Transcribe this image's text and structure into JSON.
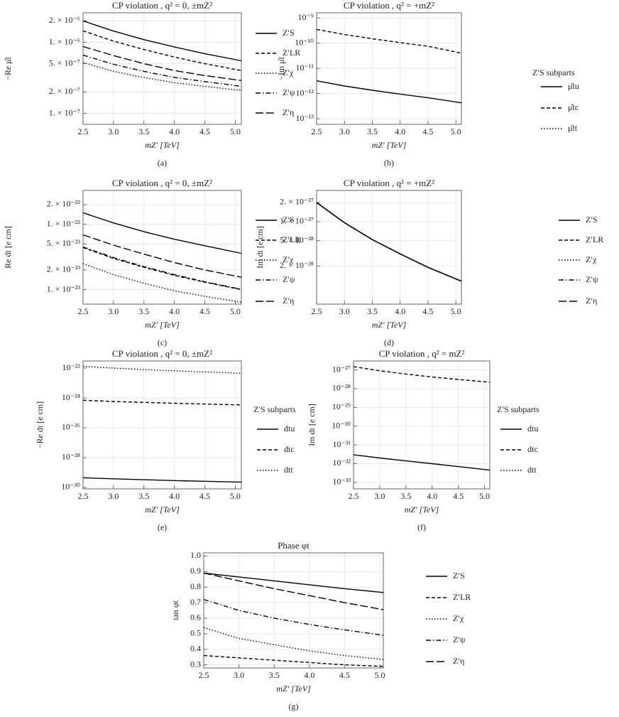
{
  "chart_data": [
    {
      "type": "line",
      "title": "CP violation ,  q² = 0, ±mZ²",
      "caption": "(a)",
      "x_label": "mZ′ [TeV]",
      "y_label": "−Re μ̂t",
      "x": [
        2.5,
        3,
        3.5,
        4,
        4.5,
        5.1
      ],
      "xlim": [
        2.5,
        5.1
      ],
      "xticks": [
        2.5,
        {
          "value": 3,
          "label": "3.0"
        },
        3.5,
        {
          "value": 4,
          "label": "4.0"
        },
        4.5,
        {
          "value": 5,
          "label": "5.0"
        }
      ],
      "ylim": [
        7e-08,
        2.6e-06
      ],
      "yscale": "log",
      "grid": true,
      "yticks": [
        {
          "value": 1e-07,
          "label": "1. × 10⁻⁷"
        },
        {
          "value": 2e-07,
          "label": "2. × 10⁻⁷"
        },
        {
          "value": 5e-07,
          "label": "5. × 10⁻⁷"
        },
        {
          "value": 1e-06,
          "label": "1. × 10⁻⁶"
        },
        {
          "value": 2e-06,
          "label": "2. × 10⁻⁶"
        }
      ],
      "series": [
        {
          "name": "Z′S",
          "color": "#000000",
          "dash": "solid",
          "values": [
            2e-06,
            1.44e-06,
            1.09e-06,
            8.6e-07,
            6.9e-07,
            5.5e-07
          ]
        },
        {
          "name": "Z′LR",
          "color": "#000000",
          "dash": "dashed",
          "values": [
            1.45e-06,
            1.04e-06,
            7.9e-07,
            6.2e-07,
            5e-07,
            4e-07
          ]
        },
        {
          "name": "Z′χ",
          "color": "#000000",
          "dash": "dotted",
          "values": [
            5.2e-07,
            3.9e-07,
            3.2e-07,
            2.7e-07,
            2.4e-07,
            2.1e-07
          ]
        },
        {
          "name": "Z′ψ",
          "color": "#000000",
          "dash": "dashdot",
          "values": [
            6.6e-07,
            4.9e-07,
            3.9e-07,
            3.2e-07,
            2.8e-07,
            2.4e-07
          ]
        },
        {
          "name": "Z′η",
          "color": "#000000",
          "dash": "longdash",
          "values": [
            8.7e-07,
            6.5e-07,
            5e-07,
            4e-07,
            3.4e-07,
            2.9e-07
          ]
        }
      ]
    },
    {
      "type": "line",
      "title": "CP violation ,  q² = +mZ²",
      "caption": "(b)",
      "x_label": "mZ′ [TeV]",
      "y_label": "−Im μ̂t",
      "legend_title": "Z′S subparts",
      "x": [
        2.5,
        3,
        3.5,
        4,
        4.5,
        5.1
      ],
      "xlim": [
        2.5,
        5.1
      ],
      "xticks": [
        2.5,
        {
          "value": 3,
          "label": "3.0"
        },
        3.5,
        {
          "value": 4,
          "label": "4.0"
        },
        4.5,
        {
          "value": 5,
          "label": "5.0"
        }
      ],
      "ylim": [
        6e-14,
        1.6e-09
      ],
      "yscale": "log",
      "grid": true,
      "yticks": [
        {
          "value": 1e-13,
          "label": "10⁻¹³"
        },
        {
          "value": 1e-12,
          "label": "10⁻¹²"
        },
        {
          "value": 1e-11,
          "label": "10⁻¹¹"
        },
        {
          "value": 1e-10,
          "label": "10⁻¹⁰"
        },
        {
          "value": 1e-09,
          "label": "10⁻⁹"
        }
      ],
      "series": [
        {
          "name": "μ̂tu",
          "color": "#000000",
          "dash": "solid",
          "values": [
            3.2e-12,
            2e-12,
            1.35e-12,
            9.5e-13,
            6.8e-13,
            4.3e-13
          ]
        },
        {
          "name": "μ̂tc",
          "color": "#000000",
          "dash": "dashed",
          "values": [
            3.5e-10,
            2.2e-10,
            1.5e-10,
            1.05e-10,
            7.5e-11,
            4e-11
          ]
        },
        {
          "name": "μ̂tt",
          "color": "#000000",
          "dash": "dotted",
          "values": [
            null,
            null,
            null,
            null,
            null,
            null
          ]
        }
      ]
    },
    {
      "type": "line",
      "title": "CP violation ,  q² = 0, ±mZ²",
      "caption": "(c)",
      "x_label": "mZ′ [TeV]",
      "y_label": "Re dt [e cm]",
      "x": [
        2.5,
        3,
        3.5,
        4,
        4.5,
        5.1
      ],
      "xlim": [
        2.5,
        5.1
      ],
      "xticks": [
        2.5,
        {
          "value": 3,
          "label": "3.0"
        },
        3.5,
        {
          "value": 4,
          "label": "4.0"
        },
        4.5,
        {
          "value": 5,
          "label": "5.0"
        }
      ],
      "ylim": [
        6e-24,
        3.3e-22
      ],
      "yscale": "log",
      "grid": true,
      "yticks": [
        {
          "value": 1e-23,
          "label": "1. × 10⁻²³"
        },
        {
          "value": 2e-23,
          "label": "2. × 10⁻²³"
        },
        {
          "value": 5e-23,
          "label": "5. × 10⁻²³"
        },
        {
          "value": 1e-22,
          "label": "1. × 10⁻²²"
        },
        {
          "value": 2e-22,
          "label": "2. × 10⁻²²"
        }
      ],
      "series": [
        {
          "name": "Z′S",
          "color": "#000000",
          "dash": "solid",
          "values": [
            1.5e-22,
            1.05e-22,
            7.7e-23,
            5.9e-23,
            4.7e-23,
            3.6e-23
          ]
        },
        {
          "name": "Z′LR",
          "color": "#000000",
          "dash": "dashed",
          "values": [
            4.4e-23,
            3e-23,
            2.2e-23,
            1.65e-23,
            1.3e-23,
            1e-23
          ]
        },
        {
          "name": "Z′χ",
          "color": "#000000",
          "dash": "dotted",
          "values": [
            2.5e-23,
            1.7e-23,
            1.25e-23,
            9.6e-24,
            7.9e-24,
            6.4e-24
          ]
        },
        {
          "name": "Z′ψ",
          "color": "#000000",
          "dash": "dashdot",
          "values": [
            4.5e-23,
            3.1e-23,
            2.25e-23,
            1.7e-23,
            1.32e-23,
            1.01e-23
          ]
        },
        {
          "name": "Z′η",
          "color": "#000000",
          "dash": "longdash",
          "values": [
            6.9e-23,
            4.8e-23,
            3.5e-23,
            2.6e-23,
            2e-23,
            1.55e-23
          ]
        }
      ]
    },
    {
      "type": "line",
      "title": "CP violation ,  q² = +mZ²",
      "caption": "(d)",
      "x_label": "mZ′ [TeV]",
      "y_label": "Im dt [e cm]",
      "x": [
        2.5,
        3,
        3.5,
        4,
        4.5,
        5.1
      ],
      "xlim": [
        2.5,
        5.1
      ],
      "xticks": [
        2.5,
        {
          "value": 3,
          "label": "3.0"
        },
        3.5,
        {
          "value": 4,
          "label": "4.0"
        },
        4.5,
        {
          "value": 5,
          "label": "5.0"
        }
      ],
      "ylim": [
        5e-29,
        3.1e-27
      ],
      "yscale": "log",
      "grid": true,
      "yticks": [
        {
          "value": 2e-28,
          "label": "2. × 10⁻²⁸"
        },
        {
          "value": 5e-28,
          "label": "5. × 10⁻²⁸"
        },
        {
          "value": 1e-27,
          "label": "1. × 10⁻²⁷"
        },
        {
          "value": 2e-27,
          "label": "2. × 10⁻²⁷"
        }
      ],
      "series": [
        {
          "name": "Z′S",
          "color": "#000000",
          "dash": "solid",
          "values": [
            2e-27,
            9.6e-28,
            5.2e-28,
            3.1e-28,
            1.9e-28,
            1.15e-28
          ]
        },
        {
          "name": "Z′LR",
          "color": "#000000",
          "dash": "dashed",
          "values": [
            2e-27,
            9.6e-28,
            5.2e-28,
            3.1e-28,
            1.9e-28,
            1.15e-28
          ]
        },
        {
          "name": "Z′χ",
          "color": "#000000",
          "dash": "dotted",
          "values": [
            2e-27,
            9.6e-28,
            5.2e-28,
            3.1e-28,
            1.9e-28,
            1.15e-28
          ]
        },
        {
          "name": "Z′ψ",
          "color": "#000000",
          "dash": "dashdot",
          "values": [
            2e-27,
            9.6e-28,
            5.2e-28,
            3.1e-28,
            1.9e-28,
            1.15e-28
          ]
        },
        {
          "name": "Z′η",
          "color": "#000000",
          "dash": "longdash",
          "values": [
            2e-27,
            9.6e-28,
            5.2e-28,
            3.1e-28,
            1.9e-28,
            1.15e-28
          ]
        }
      ]
    },
    {
      "type": "line",
      "title": "CP violation ,  q² = 0, ±mZ²",
      "caption": "(e)",
      "x_label": "mZ′ [TeV]",
      "y_label": "−Re dt [e cm]",
      "legend_title": "Z′S subparts",
      "x": [
        2.5,
        3,
        3.5,
        4,
        4.5,
        5.1
      ],
      "xlim": [
        2.5,
        5.1
      ],
      "xticks": [
        2.5,
        {
          "value": 3,
          "label": "3.0"
        },
        3.5,
        {
          "value": 4,
          "label": "4.0"
        },
        4.5,
        {
          "value": 5,
          "label": "5.0"
        }
      ],
      "ylim": [
        8e-31,
        3e-22
      ],
      "yscale": "log",
      "grid": true,
      "yticks": [
        {
          "value": 1e-30,
          "label": "10⁻³⁰"
        },
        {
          "value": 1e-28,
          "label": "10⁻²⁸"
        },
        {
          "value": 1e-26,
          "label": "10⁻²⁶"
        },
        {
          "value": 1e-24,
          "label": "10⁻²⁴"
        },
        {
          "value": 1e-22,
          "label": "10⁻²²"
        }
      ],
      "series": [
        {
          "name": "dtu",
          "color": "#000000",
          "dash": "solid",
          "values": [
            4.5e-30,
            3.8e-30,
            3.3e-30,
            2.9e-30,
            2.6e-30,
            2.3e-30
          ]
        },
        {
          "name": "dtc",
          "color": "#000000",
          "dash": "dashed",
          "values": [
            7e-25,
            5.8e-25,
            5e-25,
            4.4e-25,
            3.9e-25,
            3.4e-25
          ]
        },
        {
          "name": "dtt",
          "color": "#000000",
          "dash": "dotted",
          "values": [
            1.3e-22,
            1e-22,
            8e-23,
            6.5e-23,
            5.5e-23,
            4.5e-23
          ]
        }
      ]
    },
    {
      "type": "line",
      "title": "CP violation ,  q² = mZ²",
      "caption": "(f)",
      "x_label": "mZ′ [TeV]",
      "y_label": "Im dt [e cm]",
      "legend_title": "Z′S subparts",
      "x": [
        2.5,
        3,
        3.5,
        4,
        4.5,
        5.1
      ],
      "xlim": [
        2.5,
        5.1
      ],
      "xticks": [
        2.5,
        {
          "value": 3,
          "label": "3.0"
        },
        3.5,
        {
          "value": 4,
          "label": "4.0"
        },
        4.5,
        {
          "value": 5,
          "label": "5.0"
        }
      ],
      "ylim": [
        4.5e-34,
        3e-27
      ],
      "yscale": "log",
      "grid": true,
      "yticks": [
        {
          "value": 1e-33,
          "label": "10⁻³³"
        },
        {
          "value": 1e-32,
          "label": "10⁻³²"
        },
        {
          "value": 1e-31,
          "label": "10⁻³¹"
        },
        {
          "value": 1e-30,
          "label": "10⁻³⁰"
        },
        {
          "value": 1e-29,
          "label": "10⁻²⁹"
        },
        {
          "value": 1e-28,
          "label": "10⁻²⁸"
        },
        {
          "value": 1e-27,
          "label": "10⁻²⁷"
        }
      ],
      "series": [
        {
          "name": "dtu",
          "color": "#000000",
          "dash": "solid",
          "values": [
            3e-32,
            2e-32,
            1.4e-32,
            1e-32,
            7e-33,
            4.5e-33
          ]
        },
        {
          "name": "dtc",
          "color": "#000000",
          "dash": "dashed",
          "values": [
            1.5e-27,
            9e-28,
            6e-28,
            4.2e-28,
            3.1e-28,
            2.2e-28
          ]
        },
        {
          "name": "dtt",
          "color": "#000000",
          "dash": "dotted",
          "values": [
            null,
            null,
            null,
            null,
            null,
            null
          ]
        }
      ]
    },
    {
      "type": "line",
      "title": "Phase φt",
      "caption": "(g)",
      "x_label": "mZ′ [TeV]",
      "y_label": "tan φt",
      "x": [
        2.5,
        3,
        3.5,
        4,
        4.5,
        5.05
      ],
      "xlim": [
        2.5,
        5.05
      ],
      "xticks": [
        2.5,
        {
          "value": 3,
          "label": "3.0"
        },
        3.5,
        {
          "value": 4,
          "label": "4.0"
        },
        4.5,
        {
          "value": 5,
          "label": "5.0"
        }
      ],
      "ylim": [
        0.28,
        1.02
      ],
      "yscale": "linear",
      "grid": true,
      "yticks": [
        0.3,
        0.4,
        0.5,
        0.6,
        0.7,
        0.8,
        0.9,
        {
          "value": 1,
          "label": "1.0"
        }
      ],
      "series": [
        {
          "name": "Z′S",
          "color": "#000000",
          "dash": "solid",
          "values": [
            0.89,
            0.865,
            0.84,
            0.815,
            0.79,
            0.765
          ]
        },
        {
          "name": "Z′LR",
          "color": "#000000",
          "dash": "dashed",
          "values": [
            0.36,
            0.345,
            0.33,
            0.315,
            0.3,
            0.29
          ]
        },
        {
          "name": "Z′χ",
          "color": "#000000",
          "dash": "dotted",
          "values": [
            0.54,
            0.47,
            0.43,
            0.39,
            0.36,
            0.335
          ]
        },
        {
          "name": "Z′ψ",
          "color": "#000000",
          "dash": "dashdot",
          "values": [
            0.72,
            0.65,
            0.6,
            0.56,
            0.525,
            0.49
          ]
        },
        {
          "name": "Z′η",
          "color": "#000000",
          "dash": "longdash",
          "values": [
            0.89,
            0.84,
            0.79,
            0.745,
            0.7,
            0.655
          ]
        }
      ]
    }
  ]
}
